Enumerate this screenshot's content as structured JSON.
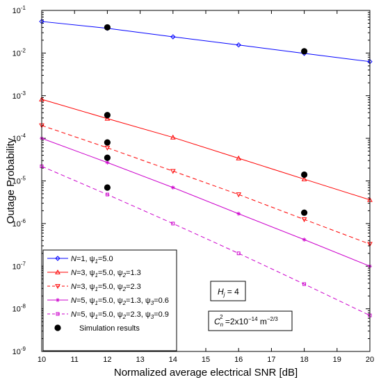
{
  "chart_data": {
    "type": "line",
    "xlabel": "Normalized average electrical SNR [dB]",
    "ylabel": "Outage Probability",
    "xlim": [
      10,
      20
    ],
    "ylim": [
      1e-09,
      0.1
    ],
    "yscale": "log",
    "x_ticks": [
      10,
      11,
      12,
      13,
      14,
      15,
      16,
      17,
      18,
      19,
      20
    ],
    "y_ticks": [
      {
        "value": 1e-09,
        "base": "10",
        "exp": "-9"
      },
      {
        "value": 1e-08,
        "base": "10",
        "exp": "-8"
      },
      {
        "value": 1e-07,
        "base": "10",
        "exp": "-7"
      },
      {
        "value": 1e-06,
        "base": "10",
        "exp": "-6"
      },
      {
        "value": 1e-05,
        "base": "10",
        "exp": "-5"
      },
      {
        "value": 0.0001,
        "base": "10",
        "exp": "-4"
      },
      {
        "value": 0.001,
        "base": "10",
        "exp": "-3"
      },
      {
        "value": 0.01,
        "base": "10",
        "exp": "-2"
      },
      {
        "value": 0.1,
        "base": "10",
        "exp": "-1"
      }
    ],
    "grid": false,
    "legend_position": "bottom-left",
    "series": [
      {
        "name": "N=1, ψ1=5.0",
        "legend_parts": [
          [
            "N",
            "it"
          ],
          [
            "=1, ",
            ""
          ],
          [
            "ψ",
            ""
          ],
          [
            "1",
            "sub-it"
          ],
          [
            "=5.0",
            ""
          ]
        ],
        "color": "#0000ff",
        "dash": "solid",
        "marker": "diamond",
        "x": [
          10,
          12,
          14,
          16,
          18,
          20
        ],
        "y": [
          0.055,
          0.038,
          0.024,
          0.0155,
          0.0098,
          0.0063
        ]
      },
      {
        "name": "N=3, ψ1=5.0, ψ2=1.3",
        "legend_parts": [
          [
            "N",
            "it"
          ],
          [
            "=3, ",
            ""
          ],
          [
            "ψ",
            ""
          ],
          [
            "1",
            "sub-it"
          ],
          [
            "=5.0, ",
            ""
          ],
          [
            "ψ",
            ""
          ],
          [
            "2",
            "sub-it"
          ],
          [
            "=1.3",
            ""
          ]
        ],
        "color": "#ff0000",
        "dash": "solid",
        "marker": "triangle-up",
        "x": [
          10,
          12,
          14,
          16,
          18,
          20
        ],
        "y": [
          0.00082,
          0.00029,
          0.000105,
          3.4e-05,
          1.1e-05,
          3.6e-06
        ]
      },
      {
        "name": "N=3, ψ1=5.0, ψ2=2.3",
        "legend_parts": [
          [
            "N",
            "it"
          ],
          [
            "=3, ",
            ""
          ],
          [
            "ψ",
            ""
          ],
          [
            "1",
            "sub-it"
          ],
          [
            "=5.0, ",
            ""
          ],
          [
            "ψ",
            ""
          ],
          [
            "2",
            "sub-it"
          ],
          [
            "=2.3",
            ""
          ]
        ],
        "color": "#ff0000",
        "dash": "dashed",
        "marker": "triangle-down",
        "x": [
          10,
          12,
          14,
          16,
          18,
          20
        ],
        "y": [
          0.0002,
          6e-05,
          1.7e-05,
          4.8e-06,
          1.25e-06,
          3.3e-07
        ]
      },
      {
        "name": "N=5, ψ1=5.0, ψ2=1.3, ψ3=0.6",
        "legend_parts": [
          [
            "N",
            "it"
          ],
          [
            "=5, ",
            ""
          ],
          [
            "ψ",
            ""
          ],
          [
            "1",
            "sub-it"
          ],
          [
            "=5.0, ",
            ""
          ],
          [
            "ψ",
            ""
          ],
          [
            "2",
            "sub-it"
          ],
          [
            "=1.3, ",
            ""
          ],
          [
            "ψ",
            ""
          ],
          [
            "3",
            "sub-it"
          ],
          [
            "=0.6",
            ""
          ]
        ],
        "color": "#cc00cc",
        "dash": "solid",
        "marker": "star",
        "x": [
          10,
          12,
          14,
          16,
          18,
          20
        ],
        "y": [
          0.0001,
          2.7e-05,
          7e-06,
          1.7e-06,
          4.2e-07,
          1e-07
        ]
      },
      {
        "name": "N=5, ψ1=5.0, ψ2=2.3, ψ3=0.9",
        "legend_parts": [
          [
            "N",
            "it"
          ],
          [
            "=5, ",
            ""
          ],
          [
            "ψ",
            ""
          ],
          [
            "1",
            "sub-it"
          ],
          [
            "=5.0, ",
            ""
          ],
          [
            "ψ",
            ""
          ],
          [
            "2",
            "sub-it"
          ],
          [
            "=2.3, ",
            ""
          ],
          [
            "ψ",
            ""
          ],
          [
            "3",
            "sub-it"
          ],
          [
            "=0.9",
            ""
          ]
        ],
        "color": "#cc00cc",
        "dash": "dashed",
        "marker": "square",
        "x": [
          10,
          12,
          14,
          16,
          18,
          20
        ],
        "y": [
          2.2e-05,
          4.8e-06,
          1e-06,
          2e-07,
          3.8e-08,
          7e-09
        ]
      }
    ],
    "simulation": {
      "name": "Simulation results",
      "color": "#000000",
      "marker": "filled-circle",
      "points": [
        {
          "x": 12,
          "y": 0.04
        },
        {
          "x": 18,
          "y": 0.011
        },
        {
          "x": 12,
          "y": 0.00035
        },
        {
          "x": 12,
          "y": 8e-05
        },
        {
          "x": 12,
          "y": 3.5e-05
        },
        {
          "x": 12,
          "y": 7e-06
        },
        {
          "x": 18,
          "y": 1.4e-05
        },
        {
          "x": 18,
          "y": 1.8e-06
        }
      ]
    },
    "annotations": [
      {
        "id": "hj",
        "parts": [
          [
            "H",
            "it"
          ],
          [
            "j",
            "sub-it"
          ],
          [
            " = 4",
            ""
          ]
        ],
        "boxed": true
      },
      {
        "id": "cn2",
        "parts": [
          [
            "C",
            "it"
          ],
          [
            "n",
            "sub-it"
          ],
          [
            "2",
            "sup-over"
          ],
          [
            " =2x10",
            ""
          ],
          [
            "−14",
            "sup"
          ],
          [
            " m",
            ""
          ],
          [
            "−2/3",
            "sup"
          ]
        ],
        "boxed": true
      }
    ]
  }
}
